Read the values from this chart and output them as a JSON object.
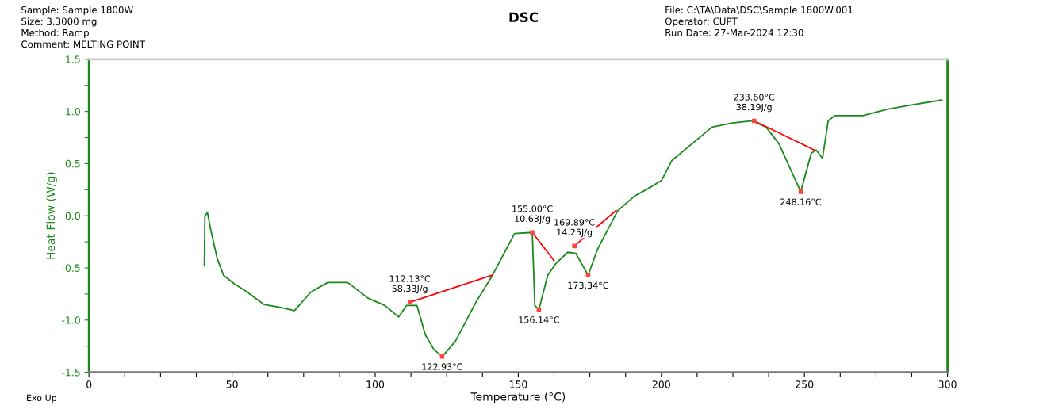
{
  "chart_data": {
    "type": "line",
    "title": "DSC",
    "xlabel": "Temperature (°C)",
    "ylabel": "Heat Flow (W/g)",
    "xlim": [
      0,
      300
    ],
    "ylim": [
      -1.5,
      1.5
    ],
    "xticks": [
      0,
      {
        "value": 12.5,
        "label": null
      },
      {
        "value": 25,
        "label": null
      },
      {
        "value": 37.5,
        "label": null
      },
      50,
      {
        "value": 62.5,
        "label": null
      },
      {
        "value": 75,
        "label": null
      },
      {
        "value": 87.5,
        "label": null
      },
      100,
      {
        "value": 112.5,
        "label": null
      },
      {
        "value": 125,
        "label": null
      },
      {
        "value": 137.5,
        "label": null
      },
      150,
      {
        "value": 162.5,
        "label": null
      },
      {
        "value": 175,
        "label": null
      },
      {
        "value": 187.5,
        "label": null
      },
      200,
      {
        "value": 212.5,
        "label": null
      },
      {
        "value": 225,
        "label": null
      },
      {
        "value": 237.5,
        "label": null
      },
      250,
      {
        "value": 262.5,
        "label": null
      },
      {
        "value": 275,
        "label": null
      },
      {
        "value": 287.5,
        "label": null
      },
      300
    ],
    "yticks": [
      -1.5,
      {
        "value": -1.25,
        "label": null
      },
      {
        "value": -1.0,
        "label": "-1.0"
      },
      {
        "value": -0.75,
        "label": null
      },
      -0.5,
      {
        "value": -0.25,
        "label": null
      },
      {
        "value": 0.0,
        "label": "0.0"
      },
      {
        "value": 0.25,
        "label": null
      },
      0.5,
      {
        "value": 0.75,
        "label": null
      },
      {
        "value": 1.0,
        "label": "1.0"
      },
      {
        "value": 1.25,
        "label": null
      },
      1.5
    ],
    "grid": false,
    "legend": false,
    "series": [
      {
        "color": "#1a8a1a",
        "x": [
          40.3,
          40.5,
          41.4,
          42.5,
          44.8,
          47,
          50.7,
          55.2,
          61.1,
          67,
          71.8,
          77.6,
          83.4,
          90.4,
          97.5,
          103.4,
          108.2,
          111,
          114.6,
          117.5,
          120.5,
          123.4,
          128.1,
          135.2,
          141,
          148.7,
          154.9,
          155.8,
          157.2,
          160.3,
          163.1,
          167.3,
          170.1,
          174.4,
          177.7,
          184.8,
          190.7,
          196.6,
          200.1,
          203.7,
          210.7,
          217.7,
          224.8,
          231.8,
          236.6,
          241.1,
          248.7,
          252.4,
          254.1,
          256.3,
          258.3,
          260.6,
          270.4,
          278.9,
          287,
          298
        ],
        "values": [
          -0.48,
          0.0,
          0.03,
          -0.13,
          -0.41,
          -0.57,
          -0.65,
          -0.73,
          -0.85,
          -0.88,
          -0.91,
          -0.73,
          -0.64,
          -0.64,
          -0.79,
          -0.86,
          -0.97,
          -0.86,
          -0.86,
          -1.14,
          -1.28,
          -1.35,
          -1.2,
          -0.83,
          -0.57,
          -0.17,
          -0.16,
          -0.86,
          -0.9,
          -0.57,
          -0.46,
          -0.35,
          -0.36,
          -0.57,
          -0.32,
          0.05,
          0.19,
          0.28,
          0.34,
          0.53,
          0.69,
          0.85,
          0.89,
          0.91,
          0.85,
          0.69,
          0.23,
          0.6,
          0.63,
          0.55,
          0.91,
          0.96,
          0.96,
          1.02,
          1.06,
          1.11
        ]
      },
      {
        "color": "#ff0000",
        "x": [
          112.1,
          140.8
        ],
        "values": [
          -0.83,
          -0.57
        ]
      },
      {
        "color": "#ff0000",
        "x": [
          154.9,
          162.5
        ],
        "values": [
          -0.16,
          -0.43
        ]
      },
      {
        "color": "#ff0000",
        "x": [
          169.6,
          184.2
        ],
        "values": [
          -0.29,
          0.05
        ]
      },
      {
        "color": "#ff0000",
        "x": [
          232.4,
          253.5
        ],
        "values": [
          0.91,
          0.63
        ]
      }
    ],
    "annotations": [
      "Sample: Sample 1800W",
      "Size: 3.3000 mg",
      "Method: Ramp",
      "Comment: MELTING POINT",
      "File: C:\\TA\\Data\\DSC\\Sample 1800W.001",
      "Operator: CUPT",
      "Run Date: 27-Mar-2024 12:30",
      "Exo Up",
      {
        "text": "112.13°C\n58.33J/g",
        "x": 112.1,
        "y": -0.83
      },
      {
        "text": "122.93°C",
        "x": 123.4,
        "y": -1.35
      },
      {
        "text": "155.00°C\n10.63J/g",
        "x": 154.9,
        "y": -0.16
      },
      {
        "text": "156.14°C",
        "x": 157.2,
        "y": -0.9
      },
      {
        "text": "169.89°C\n14.25J/g",
        "x": 169.6,
        "y": -0.29
      },
      {
        "text": "173.34°C",
        "x": 174.4,
        "y": -0.57
      },
      {
        "text": "233.60°C\n38.19J/g",
        "x": 232.4,
        "y": 0.91
      },
      {
        "text": "248.16°C",
        "x": 248.7,
        "y": 0.23
      }
    ]
  }
}
